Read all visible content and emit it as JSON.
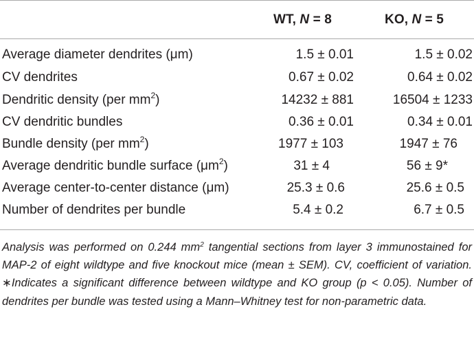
{
  "table": {
    "header": {
      "wt_prefix": "WT, ",
      "wt_n": "N",
      "wt_suffix": " = 8",
      "ko_prefix": "KO, ",
      "ko_n": "N",
      "ko_suffix": " = 5"
    },
    "rows": [
      {
        "label": "Average diameter dendrites (μm)",
        "wt": "1.5 ± 0.01",
        "ko": "1.5 ± 0.02"
      },
      {
        "label": "CV dendrites",
        "wt": "0.67 ± 0.02",
        "ko": "0.64 ± 0.02"
      },
      {
        "label": "Dendritic density (per mm",
        "label_sup": "2",
        "label_end": ")",
        "wt": "14232 ± 881",
        "ko": "16504 ± 1233"
      },
      {
        "label": "CV dendritic bundles",
        "wt": "0.36 ± 0.01",
        "ko": "0.34 ± 0.01"
      },
      {
        "label": "Bundle density (per mm",
        "label_sup": "2",
        "label_end": ")",
        "wt": "1977 ± 103",
        "ko": "1947 ± 76"
      },
      {
        "label": "Average dendritic bundle surface (μm",
        "label_sup": "2",
        "label_end": ")",
        "wt": "31 ± 4",
        "ko": "56 ± 9*"
      },
      {
        "label": "Average center-to-center distance (μm)",
        "wt": "25.3 ± 0.6",
        "ko": "25.6 ± 0.5"
      },
      {
        "label": "Number of dendrites per bundle",
        "wt": "5.4 ± 0.2",
        "ko": "6.7 ± 0.5"
      }
    ]
  },
  "footnote": {
    "part1": "Analysis was performed on 0.244 mm",
    "sup": "2",
    "part2": " tangential sections from layer 3 immunostained for MAP-2 of eight wildtype and five knockout mice (mean ± SEM). CV, coefficient of variation. ∗Indicates a significant difference between wildtype and KO group (p < 0.05). Number of dendrites per bundle was tested using a Mann–Whitney test for non-parametric data."
  }
}
